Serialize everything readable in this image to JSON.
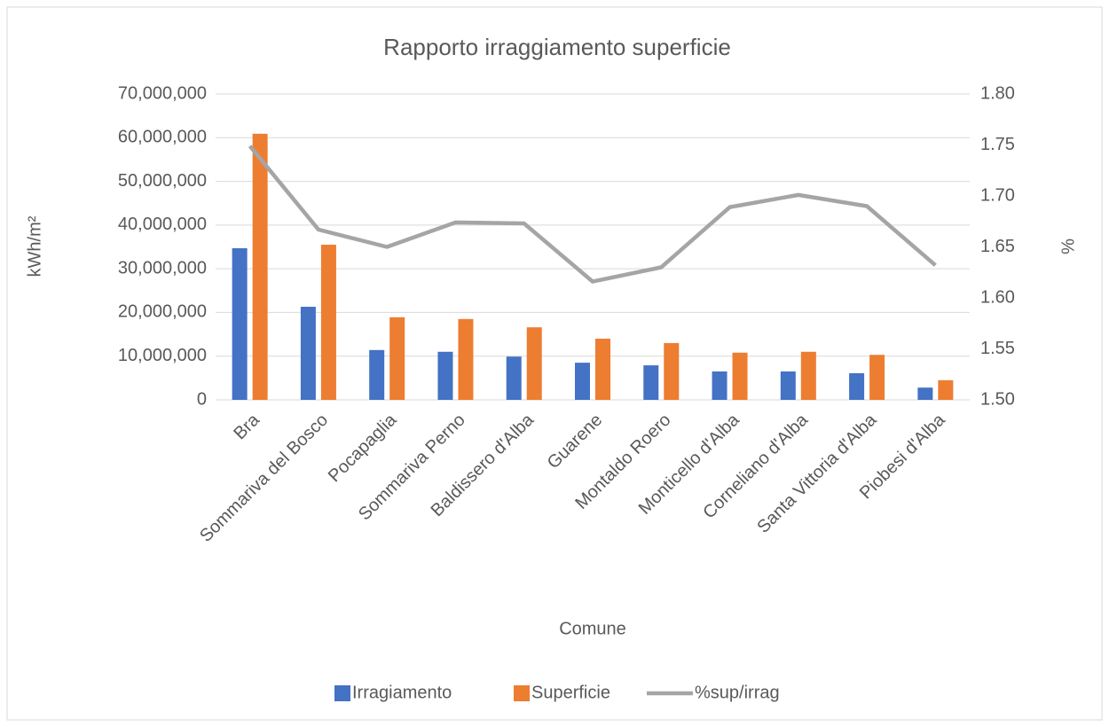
{
  "chart_data": {
    "type": "bar",
    "title": "Rapporto irraggiamento superficie",
    "x_label": "Comune",
    "y_label": "kWh/m²",
    "y2_label": "%",
    "categories": [
      "Bra",
      "Sommariva del Bosco",
      "Pocapaglia",
      "Sommariva Perno",
      "Baldissero d'Alba",
      "Guarene",
      "Montaldo Roero",
      "Monticello d'Alba",
      "Corneliano d'Alba",
      "Santa Vittoria d'Alba",
      "Piobesi d'Alba"
    ],
    "series": [
      {
        "name": "Irragiamento",
        "color": "#4472c4",
        "values": [
          34700000,
          21300000,
          11400000,
          11000000,
          9900000,
          8500000,
          7900000,
          6500000,
          6500000,
          6100000,
          2800000
        ]
      },
      {
        "name": "Superficie",
        "color": "#ed7d31",
        "values": [
          60900000,
          35500000,
          18900000,
          18500000,
          16600000,
          14000000,
          13000000,
          10800000,
          11000000,
          10300000,
          4500000
        ]
      },
      {
        "name": "%sup/irrag",
        "color": "#a5a5a5",
        "type": "line",
        "axis": "y2",
        "values": [
          1.749,
          1.667,
          1.65,
          1.674,
          1.673,
          1.616,
          1.63,
          1.689,
          1.701,
          1.69,
          1.632
        ]
      }
    ],
    "ylim": [
      0,
      70000000
    ],
    "yticks": [
      0,
      {
        "value": 10000000,
        "label": "10,000,000"
      },
      {
        "value": 20000000,
        "label": "20,000,000"
      },
      {
        "value": 30000000,
        "label": "30,000,000"
      },
      {
        "value": 40000000,
        "label": "40,000,000"
      },
      {
        "value": 50000000,
        "label": "50,000,000"
      },
      {
        "value": 60000000,
        "label": "60,000,000"
      },
      {
        "value": 70000000,
        "label": "70,000,000"
      }
    ],
    "y2lim": [
      1.5,
      1.8
    ],
    "y2ticks": [
      {
        "value": 1.5,
        "label": "1.50"
      },
      1.55,
      {
        "value": 1.6,
        "label": "1.60"
      },
      1.65,
      {
        "value": 1.7,
        "label": "1.70"
      },
      1.75,
      {
        "value": 1.8,
        "label": "1.80"
      }
    ],
    "grid": true,
    "legend": "bottom"
  }
}
